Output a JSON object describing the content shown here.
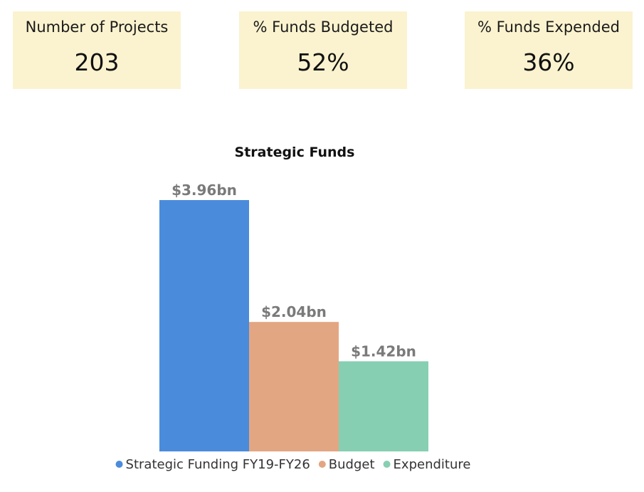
{
  "kpis": [
    {
      "label": "Number of Projects",
      "value": "203"
    },
    {
      "label": "% Funds Budgeted",
      "value": "52%"
    },
    {
      "label": "% Funds Expended",
      "value": "36%"
    }
  ],
  "chart_data": {
    "type": "bar",
    "title": "Strategic Funds",
    "categories": [
      "Strategic Funding FY19-FY26",
      "Budget",
      "Expenditure"
    ],
    "values": [
      3.96,
      2.04,
      1.42
    ],
    "data_labels": [
      "$3.96bn",
      "$2.04bn",
      "$1.42bn"
    ],
    "unit": "bn",
    "ylim": [
      0,
      3.96
    ],
    "grid": false,
    "legend": "bottom-center",
    "series": [
      {
        "name": "Strategic Funding FY19-FY26",
        "value": 3.96,
        "color": "#4a8cdb"
      },
      {
        "name": "Budget",
        "value": 2.04,
        "color": "#e3a682"
      },
      {
        "name": "Expenditure",
        "value": 1.42,
        "color": "#86cfb2"
      }
    ]
  }
}
